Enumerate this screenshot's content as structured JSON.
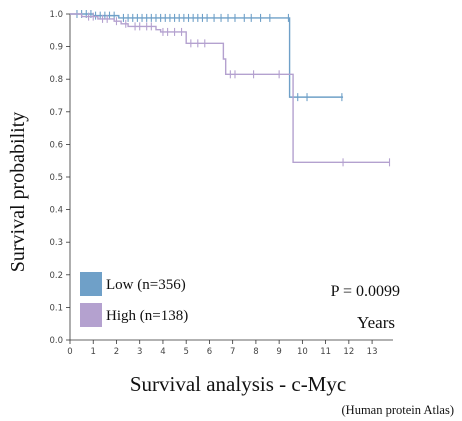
{
  "chart_data": {
    "type": "line",
    "subtype": "kaplan-meier",
    "title": "Survival analysis - c-Myc",
    "source": "(Human protein Atlas)",
    "ylabel": "Survival probability",
    "xlabel": "Years",
    "annotation": "P = 0.0099",
    "xlim": [
      0,
      13.9
    ],
    "ylim": [
      0,
      1.0
    ],
    "xticks": [
      0,
      1,
      2,
      3,
      4,
      5,
      6,
      7,
      8,
      9,
      10,
      11,
      12,
      13
    ],
    "yticks": [
      0.0,
      0.1,
      0.2,
      0.3,
      0.4,
      0.5,
      0.6,
      0.7,
      0.8,
      0.9,
      1.0
    ],
    "ytick_labels": [
      "0.0",
      "0.1",
      "0.2",
      "0.3",
      "0.4",
      "0.5",
      "0.6",
      "0.7",
      "0.8",
      "0.9",
      "1.0"
    ],
    "legend": {
      "placement": "bottom-left"
    },
    "series": [
      {
        "name": "Low (n=356)",
        "color": "#6fa0c8",
        "steps": [
          [
            0,
            1.0
          ],
          [
            1.0,
            0.995
          ],
          [
            2.1,
            0.988
          ],
          [
            9.4,
            0.988
          ],
          [
            9.45,
            0.745
          ],
          [
            11.75,
            0.745
          ]
        ],
        "censor": [
          0.3,
          0.5,
          0.7,
          0.9,
          1.1,
          1.3,
          1.5,
          1.7,
          1.9,
          2.3,
          2.5,
          2.7,
          2.9,
          3.1,
          3.3,
          3.5,
          3.7,
          3.9,
          4.1,
          4.3,
          4.5,
          4.7,
          4.9,
          5.1,
          5.3,
          5.5,
          5.7,
          5.9,
          6.2,
          6.5,
          6.8,
          7.1,
          7.5,
          7.8,
          8.2,
          8.6,
          9.4,
          9.8,
          10.2,
          11.7
        ]
      },
      {
        "name": "High (n=138)",
        "color": "#b4a1cf",
        "steps": [
          [
            0,
            1.0
          ],
          [
            0.5,
            0.992
          ],
          [
            1.2,
            0.985
          ],
          [
            1.9,
            0.978
          ],
          [
            2.2,
            0.97
          ],
          [
            2.5,
            0.962
          ],
          [
            3.7,
            0.952
          ],
          [
            3.9,
            0.945
          ],
          [
            5.0,
            0.91
          ],
          [
            6.6,
            0.862
          ],
          [
            6.7,
            0.815
          ],
          [
            9.5,
            0.815
          ],
          [
            9.6,
            0.545
          ],
          [
            13.75,
            0.545
          ]
        ],
        "censor": [
          0.8,
          1.0,
          1.4,
          1.6,
          2.0,
          2.4,
          2.8,
          3.0,
          3.3,
          3.5,
          4.0,
          4.2,
          4.5,
          4.8,
          5.2,
          5.5,
          5.8,
          6.9,
          7.1,
          7.9,
          9.0,
          11.75,
          13.75
        ]
      }
    ]
  }
}
